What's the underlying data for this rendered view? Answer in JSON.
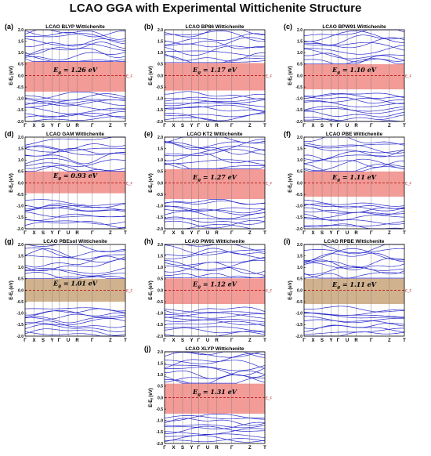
{
  "figure_title": "LCAO GGA with Experimental Wittichenite Structure",
  "fermi_level_label": "E_F",
  "band_gap_prefix": "E",
  "band_gap_subscript": "g",
  "band_gap_unit": "eV",
  "colors": {
    "bands": "#2b2bcc",
    "gap_band": "#f08a85",
    "gap_band_olive": "#c9a47a",
    "fermi_line": "#b00000",
    "axis": "#000000"
  },
  "chart_data": [
    {
      "panel": "(a)",
      "type": "line",
      "title": "LCAO BLYP Wittichenite",
      "band_gap_ev": 1.26,
      "band_gap_text": "1.26",
      "ylabel": "E-E_f (eV)",
      "ylim": [
        -2.0,
        2.0
      ],
      "yticks": [
        "2.0",
        "1.5",
        "1.0",
        "0.5",
        "0.0",
        "-0.5",
        "-1.0",
        "-1.5",
        "-2.0"
      ],
      "kpath": [
        "Γ",
        "X",
        "S",
        "Y",
        "Γ",
        "U",
        "R",
        "Γ",
        "Z",
        "T"
      ],
      "gap_region": [
        -0.7,
        0.6
      ]
    },
    {
      "panel": "(b)",
      "type": "line",
      "title": "LCAO BP86 Wittichenite",
      "band_gap_ev": 1.17,
      "band_gap_text": "1.17",
      "ylabel": "",
      "ylim": [
        -2.0,
        2.0
      ],
      "yticks": [
        "2.0",
        "1.5",
        "1.0",
        "0.5",
        "0.0",
        "-0.5",
        "-1.0",
        "-1.5",
        "-2.0"
      ],
      "kpath": [
        "Γ",
        "X",
        "S",
        "Y",
        "Γ",
        "U",
        "R",
        "Γ",
        "Z",
        "T"
      ],
      "gap_region": [
        -0.65,
        0.55
      ]
    },
    {
      "panel": "(c)",
      "type": "line",
      "title": "LCAO BPW91 Wittichenite",
      "band_gap_ev": 1.1,
      "band_gap_text": "1.10",
      "ylabel": "",
      "ylim": [
        -2.0,
        2.0
      ],
      "yticks": [
        "2.0",
        "1.5",
        "1.0",
        "0.5",
        "0.0",
        "-0.5",
        "-1.0",
        "-1.5",
        "-2.0"
      ],
      "kpath": [
        "Γ",
        "X",
        "S",
        "Y",
        "Γ",
        "U",
        "R",
        "Γ",
        "Z",
        "T"
      ],
      "gap_region": [
        -0.6,
        0.5
      ]
    },
    {
      "panel": "(d)",
      "type": "line",
      "title": "LCAO GAM Wittichenite",
      "band_gap_ev": 0.93,
      "band_gap_text": "0.93",
      "ylabel": "E-E_f (eV)",
      "ylim": [
        -2.0,
        2.0
      ],
      "yticks": [
        "2.0",
        "1.5",
        "1.0",
        "0.5",
        "0.0",
        "-0.5",
        "-1.0",
        "-1.5",
        "-2.0"
      ],
      "kpath": [
        "Γ",
        "X",
        "S",
        "Y",
        "Γ",
        "U",
        "R",
        "Γ",
        "Z",
        "T"
      ],
      "gap_region": [
        -0.45,
        0.5
      ]
    },
    {
      "panel": "(e)",
      "type": "line",
      "title": "LCAO KT2 Wittichenite",
      "band_gap_ev": 1.27,
      "band_gap_text": "1.27",
      "ylabel": "",
      "ylim": [
        -2.0,
        2.0
      ],
      "yticks": [
        "2.0",
        "1.5",
        "1.0",
        "0.5",
        "0.0",
        "-0.5",
        "-1.0",
        "-1.5",
        "-2.0"
      ],
      "kpath": [
        "Γ",
        "X",
        "S",
        "Y",
        "Γ",
        "U",
        "R",
        "Γ",
        "Z",
        "T"
      ],
      "gap_region": [
        -0.7,
        0.6
      ]
    },
    {
      "panel": "(f)",
      "type": "line",
      "title": "LCAO PBE Wittichenite",
      "band_gap_ev": 1.11,
      "band_gap_text": "1.11",
      "ylabel": "",
      "ylim": [
        -2.0,
        2.0
      ],
      "yticks": [
        "2.0",
        "1.5",
        "1.0",
        "0.5",
        "0.0",
        "-0.5",
        "-1.0",
        "-1.5",
        "-2.0"
      ],
      "kpath": [
        "Γ",
        "X",
        "S",
        "Y",
        "Γ",
        "U",
        "R",
        "Γ",
        "Z",
        "T"
      ],
      "gap_region": [
        -0.6,
        0.5
      ]
    },
    {
      "panel": "(g)",
      "type": "line",
      "title": "LCAO PBEsol Wittichenite",
      "band_gap_ev": 1.01,
      "band_gap_text": "1.01",
      "ylabel": "E-E_f (eV)",
      "ylim": [
        -2.0,
        2.0
      ],
      "yticks": [
        "2.0",
        "1.5",
        "1.0",
        "0.5",
        "0.0",
        "-0.5",
        "-1.0",
        "-1.5",
        "-2.0"
      ],
      "kpath": [
        "Γ",
        "X",
        "S",
        "Y",
        "Γ",
        "U",
        "R",
        "Γ",
        "Z",
        "T"
      ],
      "gap_region": [
        -0.5,
        0.5
      ]
    },
    {
      "panel": "(h)",
      "type": "line",
      "title": "LCAO PW91 Wittichenite",
      "band_gap_ev": 1.12,
      "band_gap_text": "1.12",
      "ylabel": "",
      "ylim": [
        -2.0,
        2.0
      ],
      "yticks": [
        "2.0",
        "1.5",
        "1.0",
        "0.5",
        "0.0",
        "-0.5",
        "-1.0",
        "-1.5",
        "-2.0"
      ],
      "kpath": [
        "Γ",
        "X",
        "S",
        "Y",
        "Γ",
        "U",
        "R",
        "Γ",
        "Z",
        "T"
      ],
      "gap_region": [
        -0.6,
        0.52
      ]
    },
    {
      "panel": "(i)",
      "type": "line",
      "title": "LCAO RPBE Wittichenite",
      "band_gap_ev": 1.11,
      "band_gap_text": "1.11",
      "ylabel": "",
      "ylim": [
        -2.0,
        2.0
      ],
      "yticks": [
        "2.0",
        "1.5",
        "1.0",
        "0.5",
        "0.0",
        "-0.5",
        "-1.0",
        "-1.5",
        "-2.0"
      ],
      "kpath": [
        "Γ",
        "X",
        "S",
        "Y",
        "Γ",
        "U",
        "R",
        "Γ",
        "Z",
        "T"
      ],
      "gap_region": [
        -0.6,
        0.51
      ]
    },
    {
      "panel": "(j)",
      "type": "line",
      "title": "LCAO XLYP Wittichenite",
      "band_gap_ev": 1.31,
      "band_gap_text": "1.31",
      "ylabel": "E-E_f (eV)",
      "ylim": [
        -2.0,
        2.0
      ],
      "yticks": [
        "2.0",
        "1.5",
        "1.0",
        "0.5",
        "0.0",
        "-0.5",
        "-1.0",
        "-1.5",
        "-2.0"
      ],
      "kpath": [
        "Γ",
        "X",
        "S",
        "Y",
        "Γ",
        "U",
        "R",
        "Γ",
        "Z",
        "T"
      ],
      "gap_region": [
        -0.7,
        0.61
      ]
    }
  ]
}
